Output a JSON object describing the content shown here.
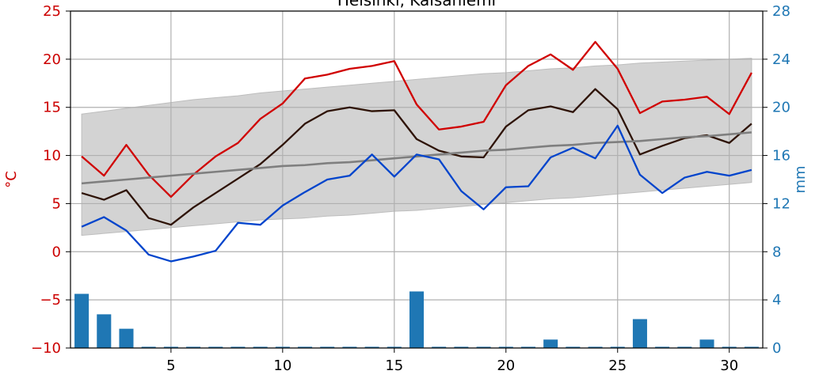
{
  "chart_data": {
    "type": "line",
    "title": "Helsinki, Kaisaniemi",
    "ylabel_left": "°C",
    "ylabel_right": "mm",
    "xlim": [
      0.5,
      31.5
    ],
    "ylim_left": [
      -10,
      25
    ],
    "ylim_right": [
      0,
      28
    ],
    "xticks": [
      5,
      10,
      15,
      20,
      25,
      30
    ],
    "yticks_left": [
      -10,
      -5,
      0,
      5,
      10,
      15,
      20,
      25
    ],
    "yticks_right": [
      0,
      4,
      8,
      12,
      16,
      20,
      24,
      28
    ],
    "grid": true,
    "x": [
      1,
      2,
      3,
      4,
      5,
      6,
      7,
      8,
      9,
      10,
      11,
      12,
      13,
      14,
      15,
      16,
      17,
      18,
      19,
      20,
      21,
      22,
      23,
      24,
      25,
      26,
      27,
      28,
      29,
      30,
      31
    ],
    "band": {
      "upper": [
        14.3,
        14.6,
        14.9,
        15.2,
        15.5,
        15.8,
        16.0,
        16.2,
        16.5,
        16.7,
        16.9,
        17.1,
        17.3,
        17.5,
        17.7,
        17.9,
        18.1,
        18.3,
        18.5,
        18.6,
        18.8,
        19.0,
        19.1,
        19.3,
        19.4,
        19.6,
        19.7,
        19.8,
        19.9,
        20.0,
        20.1
      ],
      "lower": [
        1.7,
        1.9,
        2.1,
        2.3,
        2.5,
        2.7,
        2.9,
        3.1,
        3.3,
        3.4,
        3.5,
        3.7,
        3.8,
        4.0,
        4.2,
        4.3,
        4.5,
        4.7,
        4.9,
        5.1,
        5.3,
        5.5,
        5.6,
        5.8,
        6.0,
        6.2,
        6.4,
        6.6,
        6.8,
        7.0,
        7.2
      ],
      "color": "#d3d3d3"
    },
    "series": [
      {
        "color": "#d00000",
        "axis": "left",
        "values": [
          9.9,
          7.9,
          11.1,
          8.0,
          5.7,
          8.0,
          9.9,
          11.3,
          13.8,
          15.4,
          18.0,
          18.4,
          19.0,
          19.3,
          19.8,
          15.3,
          12.7,
          13.0,
          13.5,
          17.3,
          19.3,
          20.5,
          18.9,
          21.8,
          19.0,
          14.4,
          15.6,
          15.8,
          16.1,
          14.3,
          18.6
        ]
      },
      {
        "color": "#2e1306",
        "axis": "left",
        "values": [
          6.1,
          5.4,
          6.4,
          3.5,
          2.8,
          4.6,
          6.1,
          7.6,
          9.1,
          11.1,
          13.3,
          14.6,
          15.0,
          14.6,
          14.7,
          11.7,
          10.5,
          9.9,
          9.8,
          13.0,
          14.7,
          15.1,
          14.5,
          16.9,
          14.8,
          10.1,
          11.0,
          11.8,
          12.1,
          11.3,
          13.3
        ]
      },
      {
        "color": "#7f7f7f",
        "axis": "left",
        "values": [
          7.1,
          7.3,
          7.5,
          7.7,
          7.9,
          8.1,
          8.3,
          8.5,
          8.7,
          8.9,
          9.0,
          9.2,
          9.3,
          9.5,
          9.7,
          9.9,
          10.1,
          10.3,
          10.5,
          10.6,
          10.8,
          11.0,
          11.1,
          11.3,
          11.4,
          11.5,
          11.7,
          11.9,
          12.0,
          12.2,
          12.4
        ]
      },
      {
        "color": "#0044cc",
        "axis": "left",
        "values": [
          2.6,
          3.6,
          2.2,
          -0.3,
          -1.0,
          -0.5,
          0.1,
          3.0,
          2.8,
          4.8,
          6.2,
          7.5,
          7.9,
          10.1,
          7.8,
          10.1,
          9.6,
          6.3,
          4.4,
          6.7,
          6.8,
          9.8,
          10.8,
          9.7,
          13.1,
          8.0,
          6.1,
          7.7,
          8.3,
          7.9,
          8.5
        ]
      }
    ],
    "bars": {
      "axis": "right",
      "color": "#1f77b4",
      "values": [
        4.5,
        2.8,
        1.6,
        0.1,
        0.1,
        0.1,
        0.1,
        0.1,
        0.1,
        0.1,
        0.1,
        0.1,
        0.1,
        0.1,
        0.1,
        4.7,
        0.1,
        0.1,
        0.1,
        0.1,
        0.1,
        0.7,
        0.1,
        0.1,
        0.1,
        2.4,
        0.1,
        0.1,
        0.7,
        0.1,
        0.1
      ]
    },
    "left_axis_color": "#cc0000",
    "right_axis_color": "#1f77b4"
  }
}
